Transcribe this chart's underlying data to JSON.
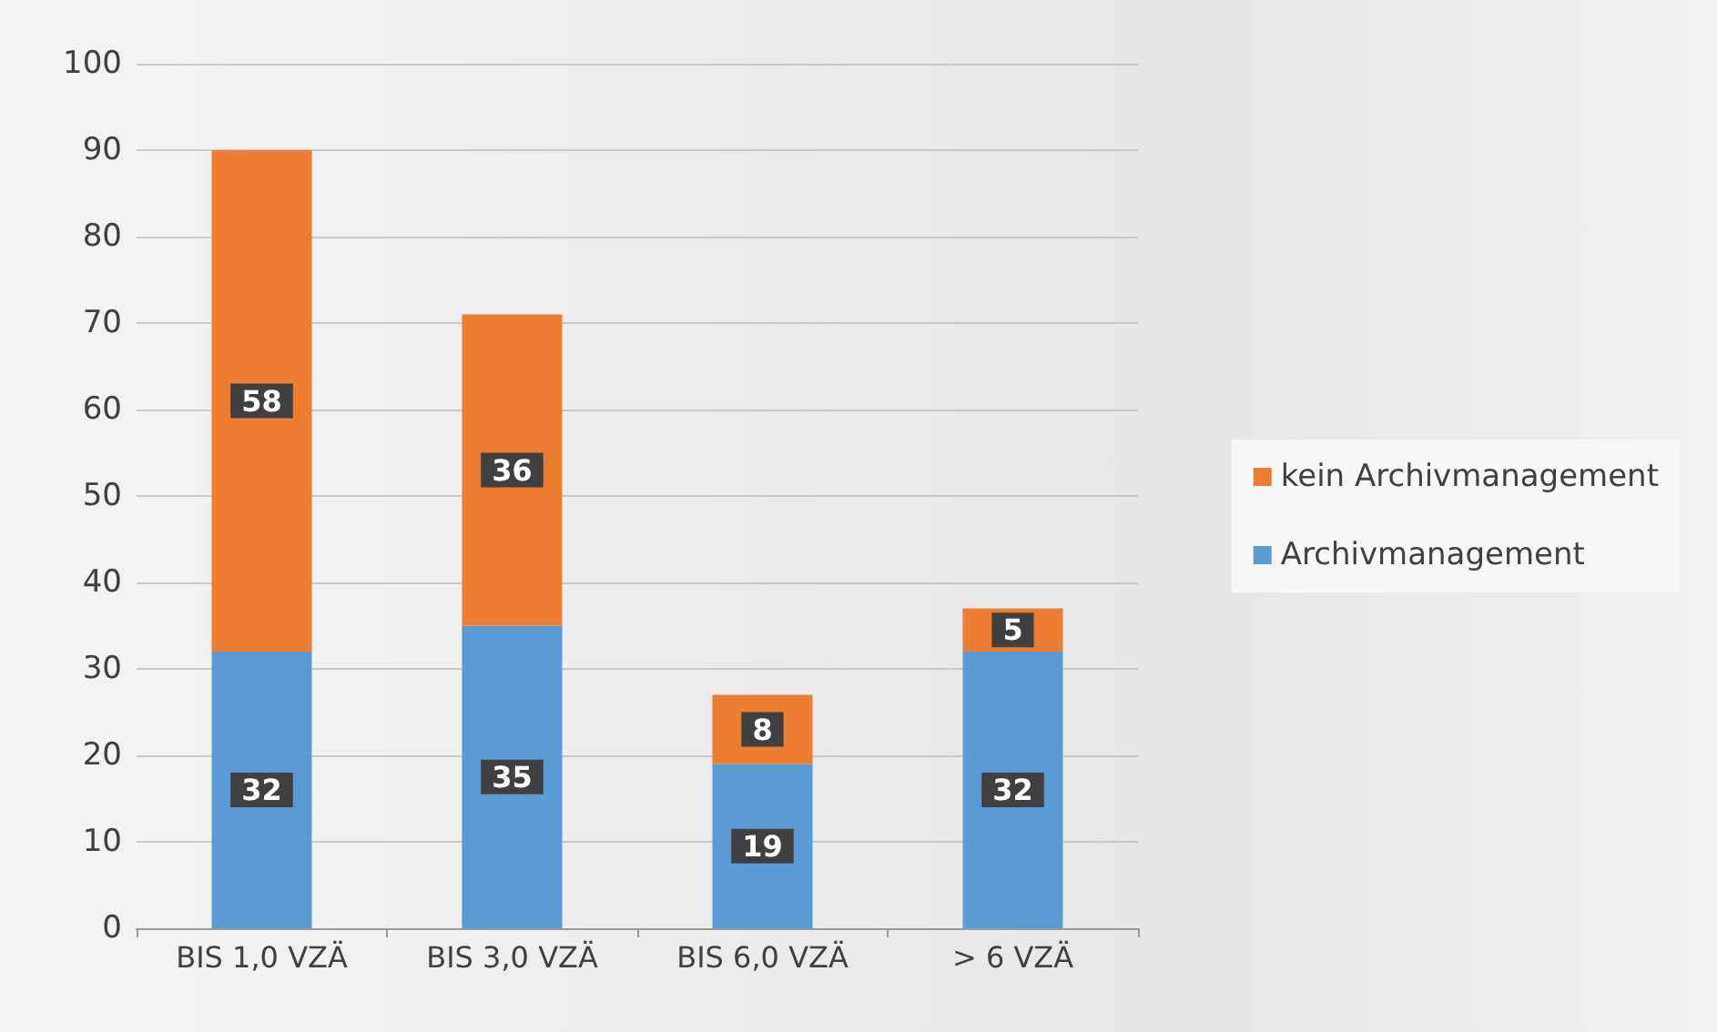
{
  "chart_data": {
    "type": "bar",
    "stacked": true,
    "categories": [
      "BIS 1,0 VZÄ",
      "BIS 3,0 VZÄ",
      "BIS 6,0 VZÄ",
      "> 6 VZÄ"
    ],
    "series": [
      {
        "name": "Archivmanagement",
        "color": "#5b9bd5",
        "values": [
          32,
          35,
          19,
          32
        ]
      },
      {
        "name": "kein Archivmanagement",
        "color": "#ed7d31",
        "values": [
          58,
          36,
          8,
          5
        ]
      }
    ],
    "ylim": [
      0,
      100
    ],
    "yticks": [
      0,
      10,
      20,
      30,
      40,
      50,
      60,
      70,
      80,
      90,
      100
    ],
    "grid": "y",
    "legend": "right",
    "data_labels": true
  }
}
